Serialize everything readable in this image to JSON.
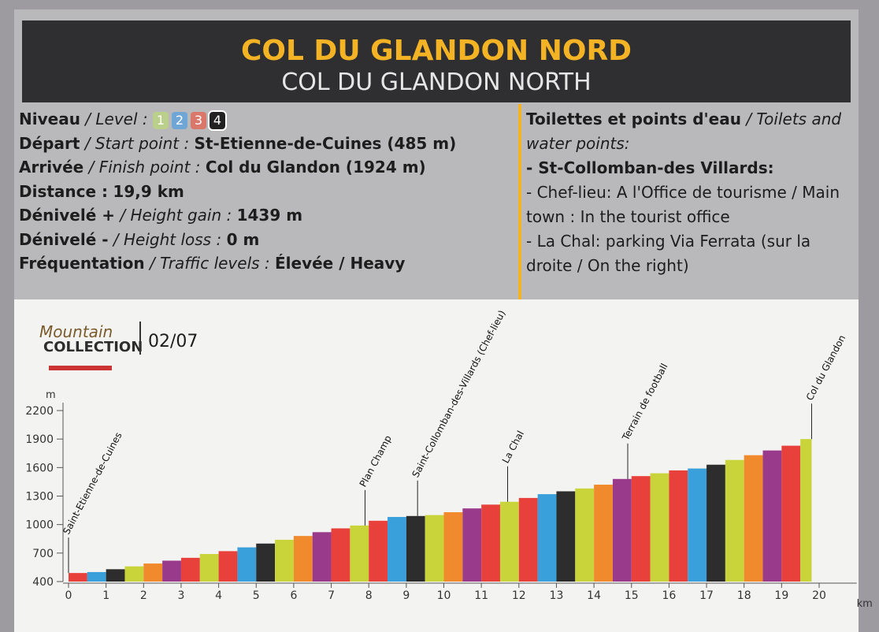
{
  "header": {
    "title": "COL DU GLANDON NORD",
    "subtitle": "COL DU GLANDON NORTH"
  },
  "info": {
    "level": {
      "fr": "Niveau",
      "en": "/ Level :",
      "levels": [
        "1",
        "2",
        "3",
        "4"
      ]
    },
    "rows": [
      {
        "fr": "Départ",
        "en": "/ Start point :",
        "value": "St-Etienne-de-Cuines (485 m)"
      },
      {
        "fr": "Arrivée",
        "en": "/ Finish point :",
        "value": "Col du Glandon (1924 m)"
      },
      {
        "fr": "Distance :",
        "en": "",
        "value": "19,9 km"
      },
      {
        "fr": "Dénivelé +",
        "en": "/ Height gain :",
        "value": "1439 m"
      },
      {
        "fr": "Dénivelé -",
        "en": "/ Height loss :",
        "value": "0 m"
      },
      {
        "fr": "Fréquentation",
        "en": "/ Traffic levels :",
        "value": "Élevée / Heavy"
      }
    ]
  },
  "toilets": {
    "title_fr": "Toilettes et points d'eau",
    "title_en": "/ Toilets and water points:",
    "place": "- St-Collomban-des Villards:",
    "items": [
      "- Chef-lieu: A l'Office de tourisme / Main town : In the tourist office",
      "- La Chal: parking Via Ferrata (sur la droite / On the right)"
    ]
  },
  "logo": {
    "script": "Mountain",
    "name": "COLLECTION",
    "number": "02/07"
  },
  "chart_data": {
    "type": "histogram",
    "y_label": "m",
    "x_label": "km",
    "bins": [
      0,
      0.5,
      1,
      1.5,
      2,
      2.5,
      3,
      3.5,
      4,
      4.5,
      5,
      5.5,
      6,
      6.5,
      7,
      7.5,
      8,
      8.5,
      9,
      9.5,
      10,
      10.5,
      11,
      11.5,
      12,
      12.5,
      13,
      13.5,
      14,
      14.5,
      15,
      15.5,
      16,
      16.5,
      17,
      17.5,
      18,
      18.5,
      19,
      19.5,
      19.8
    ],
    "values": [
      490,
      500,
      530,
      560,
      590,
      620,
      650,
      690,
      720,
      760,
      800,
      840,
      880,
      920,
      960,
      990,
      1040,
      1080,
      1090,
      1100,
      1130,
      1170,
      1210,
      1240,
      1280,
      1320,
      1350,
      1380,
      1420,
      1480,
      1510,
      1540,
      1570,
      1590,
      1630,
      1680,
      1730,
      1780,
      1830,
      1900
    ],
    "palette": [
      "#e8403a",
      "#3aa0dc",
      "#2d2d2d",
      "#c9d43a",
      "#f08a2c",
      "#9a3a8a",
      "#e8403a",
      "#c9d43a"
    ],
    "xlim": [
      0,
      21
    ],
    "xticks": [
      0,
      1,
      2,
      3,
      4,
      5,
      6,
      7,
      8,
      9,
      10,
      11,
      12,
      13,
      14,
      15,
      16,
      17,
      18,
      19,
      20
    ],
    "ylim": [
      400,
      2200
    ],
    "yticks": [
      400,
      700,
      1000,
      1300,
      1600,
      1900,
      2200
    ],
    "annotations": [
      {
        "label": "Saint-Etienne-de-Cuines",
        "x": 0
      },
      {
        "label": "Plan Champ",
        "x": 7.9
      },
      {
        "label": "Saint-Collomban-des-Villards (Chef-lieu)",
        "x": 9.3
      },
      {
        "label": "La Chal",
        "x": 11.7
      },
      {
        "label": "Terrain de football",
        "x": 14.9
      },
      {
        "label": "Col du Glandon",
        "x": 19.8
      }
    ]
  }
}
